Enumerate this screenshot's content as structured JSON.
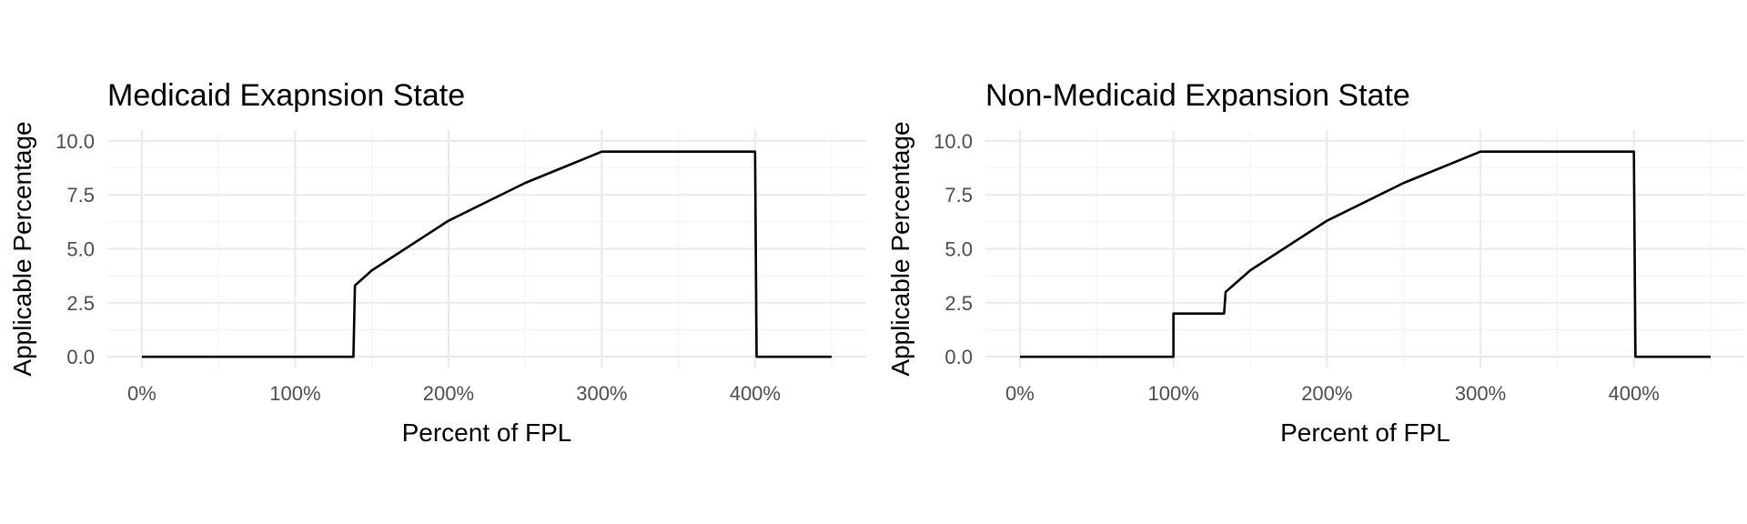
{
  "chart_data": [
    {
      "type": "line",
      "title": "Medicaid Exapnsion State",
      "xlabel": "Percent of FPL",
      "ylabel": "Applicable Percentage",
      "xlim": [
        0,
        450
      ],
      "ylim": [
        0,
        10
      ],
      "x_ticks": [
        0,
        100,
        200,
        300,
        400
      ],
      "x_tick_labels": [
        "0%",
        "100%",
        "200%",
        "300%",
        "400%"
      ],
      "y_ticks": [
        0,
        2.5,
        5,
        7.5,
        10
      ],
      "y_tick_labels": [
        "0.0",
        "2.5",
        "5.0",
        "7.5",
        "10.0"
      ],
      "grid": true,
      "series": [
        {
          "x": [
            0,
            138,
            139,
            150,
            200,
            250,
            300,
            400,
            401,
            450
          ],
          "y": [
            0,
            0,
            3.3,
            4.0,
            6.3,
            8.05,
            9.5,
            9.5,
            0,
            0
          ]
        }
      ]
    },
    {
      "type": "line",
      "title": "Non-Medicaid Expansion State",
      "xlabel": "Percent of FPL",
      "ylabel": "Applicable Percentage",
      "xlim": [
        0,
        450
      ],
      "ylim": [
        0,
        10
      ],
      "x_ticks": [
        0,
        100,
        200,
        300,
        400
      ],
      "x_tick_labels": [
        "0%",
        "100%",
        "200%",
        "300%",
        "400%"
      ],
      "y_ticks": [
        0,
        2.5,
        5,
        7.5,
        10
      ],
      "y_tick_labels": [
        "0.0",
        "2.5",
        "5.0",
        "7.5",
        "10.0"
      ],
      "grid": true,
      "series": [
        {
          "x": [
            0,
            100,
            100,
            133,
            134,
            150,
            200,
            250,
            300,
            400,
            401,
            450
          ],
          "y": [
            0,
            0,
            2.0,
            2.0,
            3.0,
            4.0,
            6.3,
            8.05,
            9.5,
            9.5,
            0,
            0
          ]
        }
      ]
    }
  ]
}
